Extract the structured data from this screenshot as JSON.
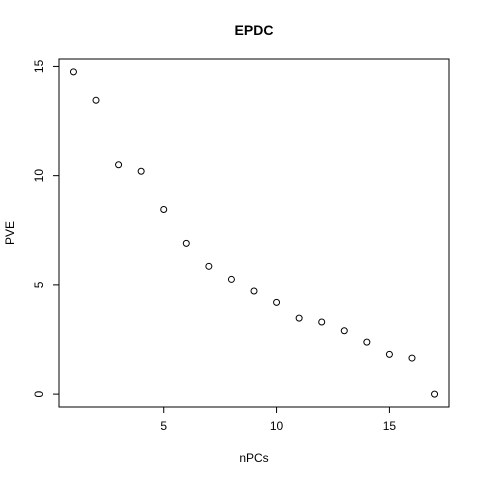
{
  "chart_data": {
    "type": "scatter",
    "title": "EPDC",
    "xlabel": "nPCs",
    "ylabel": "PVE",
    "x": [
      1,
      2,
      3,
      4,
      5,
      6,
      7,
      8,
      9,
      10,
      11,
      12,
      13,
      14,
      15,
      16,
      17
    ],
    "y": [
      14.75,
      13.45,
      10.5,
      10.2,
      8.45,
      6.9,
      5.85,
      5.25,
      4.72,
      4.2,
      3.48,
      3.3,
      2.9,
      2.38,
      1.82,
      1.65,
      0.0
    ],
    "xlim": [
      0.36,
      17.64
    ],
    "ylim": [
      -0.59,
      15.34
    ],
    "xticks": [
      5,
      10,
      15
    ],
    "xtick_labels": [
      "5",
      "10",
      "15"
    ],
    "yticks": [
      0,
      5,
      10,
      15
    ],
    "ytick_labels": [
      "0",
      "5",
      "10",
      "15"
    ],
    "marker": "open-circle",
    "grid": false,
    "colors": {
      "points": "#000000",
      "axes": "#000000",
      "background": "#ffffff"
    }
  }
}
